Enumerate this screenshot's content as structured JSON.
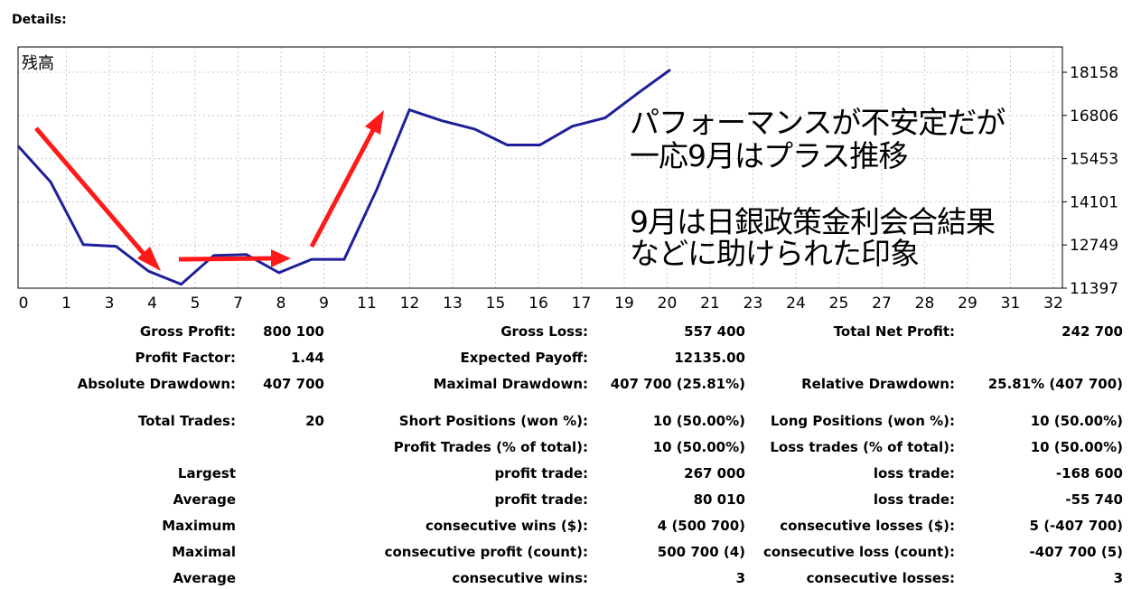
{
  "header": {
    "title": "Details:"
  },
  "chart_data": {
    "type": "line",
    "title": "残高",
    "x_ticks": [
      "0",
      "1",
      "3",
      "4",
      "5",
      "7",
      "8",
      "9",
      "11",
      "12",
      "13",
      "15",
      "16",
      "17",
      "19",
      "20",
      "21",
      "23",
      "24",
      "25",
      "27",
      "28",
      "29",
      "31",
      "32"
    ],
    "y_ticks": [
      11397,
      12749,
      14101,
      15453,
      16806,
      18158
    ],
    "ylim": [
      11397,
      18158
    ],
    "grid": true,
    "series": [
      {
        "color": "#1f1f99",
        "x": [
          0,
          1,
          2,
          3,
          4,
          5,
          6,
          7,
          8,
          9,
          10,
          11,
          12,
          13,
          14,
          15,
          16,
          17,
          18,
          19,
          20
        ],
        "values": [
          15850,
          14720,
          12760,
          12710,
          11930,
          11520,
          12420,
          12450,
          11880,
          12300,
          12300,
          14490,
          16980,
          16640,
          16380,
          15880,
          15880,
          16470,
          16730,
          17500,
          18240
        ]
      }
    ]
  },
  "annotation": {
    "line1": "パフォーマンスが不安定だが",
    "line2": "一応9月はプラス推移",
    "line3": "9月は日銀政策金利会合結果",
    "line4": "などに助けられた印象"
  },
  "stats": {
    "gross_profit_label": "Gross Profit:",
    "gross_profit": "800 100",
    "gross_loss_label": "Gross Loss:",
    "gross_loss": "557 400",
    "total_net_profit_label": "Total Net Profit:",
    "total_net_profit": "242 700",
    "profit_factor_label": "Profit Factor:",
    "profit_factor": "1.44",
    "expected_payoff_label": "Expected Payoff:",
    "expected_payoff": "12135.00",
    "absolute_drawdown_label": "Absolute Drawdown:",
    "absolute_drawdown": "407 700",
    "maximal_drawdown_label": "Maximal Drawdown:",
    "maximal_drawdown": "407 700 (25.81%)",
    "relative_drawdown_label": "Relative Drawdown:",
    "relative_drawdown": "25.81% (407 700)",
    "total_trades_label": "Total Trades:",
    "total_trades": "20",
    "short_positions_label": "Short Positions (won %):",
    "short_positions": "10 (50.00%)",
    "long_positions_label": "Long Positions (won %):",
    "long_positions": "10 (50.00%)",
    "profit_trades_label": "Profit Trades (% of total):",
    "profit_trades": "10 (50.00%)",
    "loss_trades_label": "Loss trades (% of total):",
    "loss_trades": "10 (50.00%)",
    "largest_label": "Largest",
    "largest_profit_label": "profit trade:",
    "largest_profit": "267 000",
    "largest_loss_label": "loss trade:",
    "largest_loss": "-168 600",
    "average_label": "Average",
    "average_profit_label": "profit trade:",
    "average_profit": "80 010",
    "average_loss_label": "loss trade:",
    "average_loss": "-55 740",
    "maximum_label": "Maximum",
    "max_consec_wins_label": "consecutive wins ($):",
    "max_consec_wins": "4 (500 700)",
    "max_consec_losses_label": "consecutive losses ($):",
    "max_consec_losses": "5 (-407 700)",
    "maximal_label": "Maximal",
    "maximal_consec_profit_label": "consecutive profit (count):",
    "maximal_consec_profit": "500 700 (4)",
    "maximal_consec_loss_label": "consecutive loss (count):",
    "maximal_consec_loss": "-407 700 (5)",
    "average2_label": "Average",
    "avg_consec_wins_label": "consecutive wins:",
    "avg_consec_wins": "3",
    "avg_consec_losses_label": "consecutive losses:",
    "avg_consec_losses": "3"
  }
}
